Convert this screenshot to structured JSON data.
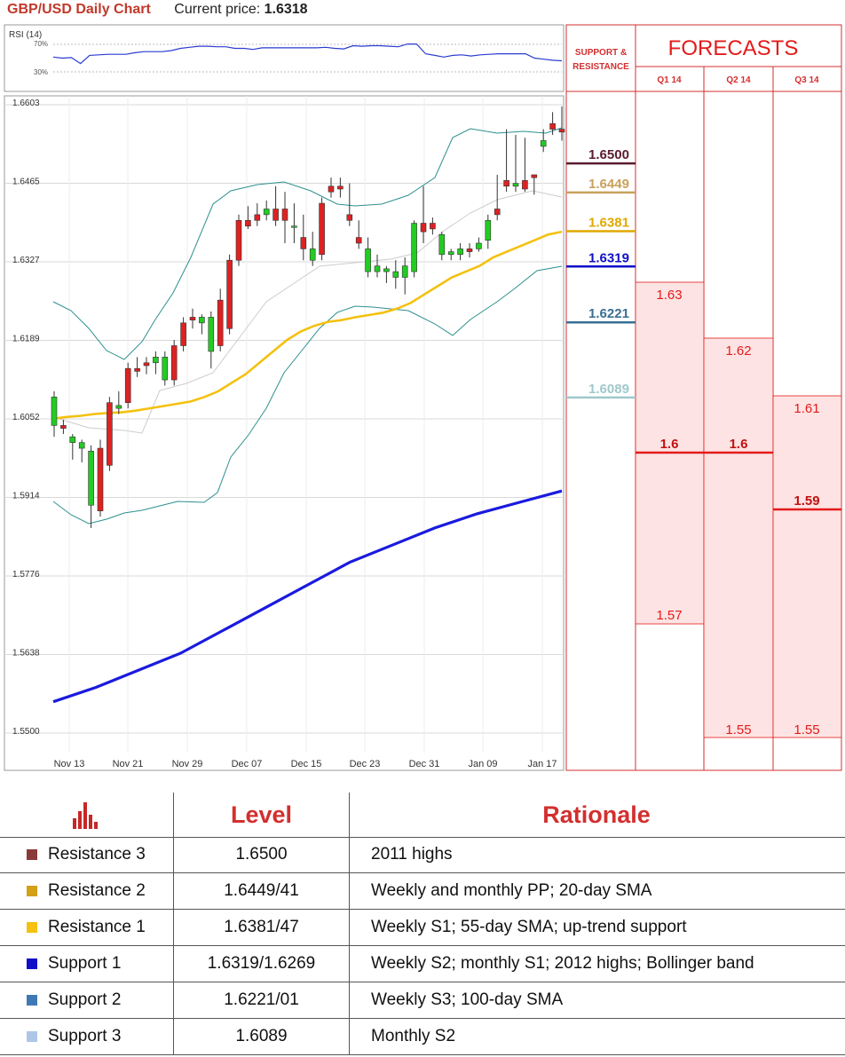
{
  "header": {
    "title": "GBP/USD Daily Chart",
    "price_label": "Current price:",
    "price_value": "1.6318"
  },
  "colors": {
    "resistance3": "#8b3a3a",
    "resistance2": "#d4a017",
    "resistance1": "#f4c10f",
    "support1": "#1010c8",
    "support2": "#3f79b5",
    "support3": "#aec6e8",
    "forecast": "#e31b1b",
    "bull": "#22cc22",
    "bear": "#dd2222"
  },
  "chart_data": [
    {
      "type": "line",
      "title": "RSI (14)",
      "y_ticks": [
        "70%",
        "30%"
      ],
      "ylim": [
        0,
        100
      ],
      "values": [
        52,
        50,
        51,
        40,
        55,
        56,
        57,
        57,
        57,
        60,
        62,
        62,
        62,
        64,
        68,
        70,
        72,
        72,
        71,
        71,
        68,
        68,
        66,
        69,
        69,
        69,
        69,
        69,
        69,
        69,
        70,
        68,
        67,
        73,
        72,
        73,
        73,
        72,
        71,
        76,
        76,
        58,
        55,
        52,
        55,
        56,
        54,
        56,
        57,
        58,
        58,
        58,
        58,
        50,
        48,
        46,
        45
      ],
      "show_grid": true
    },
    {
      "type": "candlestick",
      "x_tick_labels": [
        "Nov 13",
        "Nov 21",
        "Nov 29",
        "Dec 07",
        "Dec 15",
        "Dec 23",
        "Dec 31",
        "Jan 09",
        "Jan 17"
      ],
      "y_ticks": [
        "1.6603",
        "1.6465",
        "1.6327",
        "1.6189",
        "1.6052",
        "1.5914",
        "1.5776",
        "1.5638",
        "1.5500"
      ],
      "ylim": [
        1.55,
        1.6603
      ],
      "candles": [
        [
          1.604,
          1.61,
          1.602,
          1.609
        ],
        [
          1.604,
          1.605,
          1.6025,
          1.6035
        ],
        [
          1.601,
          1.6025,
          1.598,
          1.602
        ],
        [
          1.6,
          1.6015,
          1.5975,
          1.601
        ],
        [
          1.59,
          1.6005,
          1.586,
          1.5995
        ],
        [
          1.6,
          1.6015,
          1.588,
          1.589
        ],
        [
          1.608,
          1.609,
          1.596,
          1.597
        ],
        [
          1.607,
          1.61,
          1.606,
          1.6075
        ],
        [
          1.614,
          1.615,
          1.607,
          1.608
        ],
        [
          1.614,
          1.616,
          1.6125,
          1.6135
        ],
        [
          1.615,
          1.616,
          1.613,
          1.6145
        ],
        [
          1.615,
          1.617,
          1.613,
          1.616
        ],
        [
          1.612,
          1.617,
          1.611,
          1.616
        ],
        [
          1.618,
          1.619,
          1.611,
          1.612
        ],
        [
          1.622,
          1.623,
          1.617,
          1.618
        ],
        [
          1.623,
          1.6245,
          1.621,
          1.6225
        ],
        [
          1.622,
          1.6235,
          1.62,
          1.623
        ],
        [
          1.617,
          1.624,
          1.614,
          1.623
        ],
        [
          1.626,
          1.628,
          1.617,
          1.618
        ],
        [
          1.633,
          1.634,
          1.62,
          1.621
        ],
        [
          1.64,
          1.641,
          1.632,
          1.633
        ],
        [
          1.64,
          1.6425,
          1.6385,
          1.639
        ],
        [
          1.641,
          1.643,
          1.639,
          1.64
        ],
        [
          1.641,
          1.6435,
          1.64,
          1.642
        ],
        [
          1.642,
          1.646,
          1.639,
          1.64
        ],
        [
          1.642,
          1.645,
          1.636,
          1.64
        ],
        [
          1.639,
          1.643,
          1.636,
          1.639
        ],
        [
          1.637,
          1.641,
          1.633,
          1.635
        ],
        [
          1.633,
          1.638,
          1.632,
          1.635
        ],
        [
          1.643,
          1.644,
          1.633,
          1.634
        ],
        [
          1.646,
          1.6475,
          1.644,
          1.645
        ],
        [
          1.646,
          1.6475,
          1.644,
          1.6455
        ],
        [
          1.641,
          1.6465,
          1.639,
          1.64
        ],
        [
          1.637,
          1.64,
          1.635,
          1.636
        ],
        [
          1.631,
          1.637,
          1.63,
          1.635
        ],
        [
          1.631,
          1.634,
          1.63,
          1.632
        ],
        [
          1.631,
          1.632,
          1.629,
          1.6315
        ],
        [
          1.63,
          1.633,
          1.628,
          1.631
        ],
        [
          1.63,
          1.6335,
          1.627,
          1.632
        ],
        [
          1.631,
          1.64,
          1.63,
          1.6395
        ],
        [
          1.6395,
          1.646,
          1.636,
          1.638
        ],
        [
          1.6395,
          1.6405,
          1.6375,
          1.6385
        ],
        [
          1.634,
          1.638,
          1.633,
          1.6375
        ],
        [
          1.634,
          1.635,
          1.633,
          1.6345
        ],
        [
          1.634,
          1.636,
          1.633,
          1.635
        ],
        [
          1.635,
          1.636,
          1.6335,
          1.6345
        ],
        [
          1.635,
          1.637,
          1.6345,
          1.636
        ],
        [
          1.6365,
          1.641,
          1.635,
          1.64
        ],
        [
          1.642,
          1.648,
          1.64,
          1.641
        ],
        [
          1.647,
          1.656,
          1.645,
          1.646
        ],
        [
          1.646,
          1.655,
          1.645,
          1.6465
        ],
        [
          1.647,
          1.6545,
          1.645,
          1.6455
        ],
        [
          1.648,
          1.648,
          1.6445,
          1.6475
        ],
        [
          1.653,
          1.656,
          1.652,
          1.654
        ],
        [
          1.657,
          1.659,
          1.655,
          1.656
        ],
        [
          1.656,
          1.66,
          1.654,
          1.6555
        ]
      ],
      "sma_yellow": [
        1.6052,
        1.6055,
        1.6057,
        1.606,
        1.6062,
        1.6063,
        1.6066,
        1.607,
        1.6074,
        1.6078,
        1.6082,
        1.609,
        1.61,
        1.6115,
        1.613,
        1.615,
        1.617,
        1.619,
        1.6205,
        1.6215,
        1.6222,
        1.6225,
        1.623,
        1.6234,
        1.6238,
        1.6245,
        1.6255,
        1.627,
        1.6285,
        1.63,
        1.631,
        1.632,
        1.6335,
        1.6345,
        1.6355,
        1.6365,
        1.6375,
        1.638
      ],
      "sma_blue": [
        1.5555,
        1.558,
        1.561,
        1.564,
        1.568,
        1.572,
        1.576,
        1.58,
        1.583,
        1.586,
        1.5885,
        1.5905,
        1.5925
      ]
    },
    {
      "type": "bar",
      "title": "FORECASTS",
      "header_left": "SUPPORT & RESISTANCE",
      "categories": [
        "Q1 14",
        "Q2 14",
        "Q3 14"
      ],
      "series": [
        {
          "values_high": [
            1.63,
            1.62,
            1.61
          ],
          "values_mid": [
            1.6,
            1.6,
            1.59
          ],
          "values_low": [
            1.57,
            1.55,
            1.55
          ]
        }
      ],
      "levels": [
        {
          "value": "1.6500",
          "color": "#5a1b2e",
          "bold": true
        },
        {
          "value": "1.6449",
          "color": "#c9a15a",
          "bold": true
        },
        {
          "value": "1.6381",
          "color": "#e0a800",
          "bold": true
        },
        {
          "value": "1.6319",
          "color": "#1010c8",
          "bold": true
        },
        {
          "value": "1.6221",
          "color": "#3a6f93",
          "bold": true
        },
        {
          "value": "1.6089",
          "color": "#a0c8cc",
          "bold": true
        }
      ],
      "labels": {
        "q1_high": "1.63",
        "q1_mid": "1.6",
        "q1_low": "1.57",
        "q2_high": "1.62",
        "q2_mid": "1.6",
        "q2_low": "1.55",
        "q3_high": "1.61",
        "q3_mid": "1.59",
        "q3_low": "1.55"
      }
    }
  ],
  "table": {
    "headers": {
      "level": "Level",
      "rationale": "Rationale"
    },
    "rows": [
      {
        "name": "Resistance 3",
        "level": "1.6500",
        "rationale": "2011 highs",
        "color": "#8b3a3a"
      },
      {
        "name": "Resistance 2",
        "level": "1.6449/41",
        "rationale": "Weekly and monthly PP; 20-day SMA",
        "color": "#d4a017"
      },
      {
        "name": "Resistance 1",
        "level": "1.6381/47",
        "rationale": "Weekly S1; 55-day SMA; up-trend support",
        "color": "#f4c10f"
      },
      {
        "name": "Support 1",
        "level": "1.6319/1.6269",
        "rationale": "Weekly S2; monthly S1; 2012 highs; Bollinger band",
        "color": "#1010c8"
      },
      {
        "name": "Support 2",
        "level": "1.6221/01",
        "rationale": "Weekly S3; 100-day SMA",
        "color": "#3f79b5"
      },
      {
        "name": "Support 3",
        "level": "1.6089",
        "rationale": "Monthly S2",
        "color": "#aec6e8"
      }
    ]
  }
}
